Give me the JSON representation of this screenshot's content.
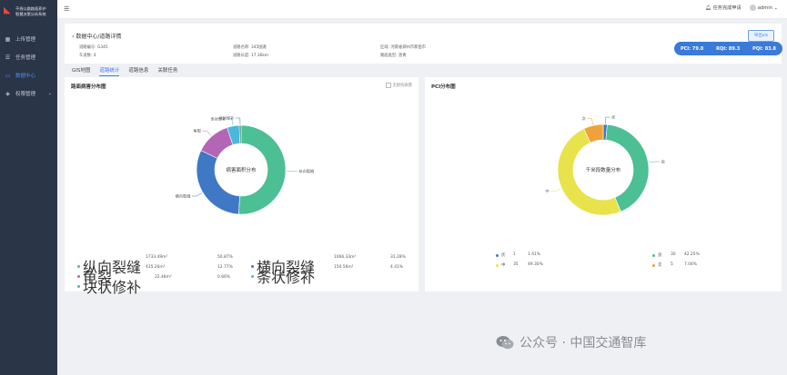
{
  "sidebar": {
    "logo_text_line1": "干线公路路面养护",
    "logo_text_line2": "智慧决策分析系统",
    "items": [
      {
        "label": "上传管理",
        "icon": "grid-icon",
        "active": false
      },
      {
        "label": "任务管理",
        "icon": "list-icon",
        "active": false
      },
      {
        "label": "数据中心",
        "icon": "monitor-icon",
        "active": true
      },
      {
        "label": "权限管理",
        "icon": "shield-icon",
        "active": false
      }
    ]
  },
  "topbar": {
    "notification": "任务完成申请",
    "user": "admin"
  },
  "header": {
    "breadcrumb": "数据中心/道路详情",
    "road_code_label": "道路编号:",
    "road_code": "G345",
    "lanes_label": "车道数:",
    "lanes": "4",
    "road_name_label": "道路名称:",
    "road_name": "345国道",
    "road_length_label": "道路长度:",
    "road_length": "17.36km",
    "region_label": "区域:",
    "region": "河南省郑州市新密市",
    "surface_label": "路面类型:",
    "surface": "沥青",
    "export_label": "导出xls",
    "metrics": [
      {
        "label": "PCI:",
        "value": "79.0"
      },
      {
        "label": "RQI:",
        "value": "89.3"
      },
      {
        "label": "PQI:",
        "value": "83.8"
      }
    ]
  },
  "tabs": [
    "GIS地图",
    "道路统计",
    "道路信息",
    "关联任务"
  ],
  "active_tab": 1,
  "left_panel": {
    "title": "路面病害分布图",
    "checkbox_label": "无损伤病害",
    "center_label": "病害面积分布",
    "colors": {
      "longitudinal": "#4dbf94",
      "transverse": "#3f78c4",
      "cracking": "#b466b6",
      "patching": "#4ab7dd"
    },
    "legend": [
      {
        "name": "纵向裂缝",
        "value": "1733.49m²",
        "percent": "50.87%",
        "color": "#4dbf94"
      },
      {
        "name": "横向裂缝",
        "value": "1066.33m²",
        "percent": "31.28%",
        "color": "#3f78c4"
      },
      {
        "name": "龟裂",
        "value": "435.26m²",
        "percent": "12.77%",
        "color": "#b466b6"
      },
      {
        "name": "条状修补",
        "value": "150.56m²",
        "percent": "4.41%",
        "color": "#4ab7dd"
      },
      {
        "name": "块状修补",
        "value": "22.48m²",
        "percent": "0.66%",
        "color": "#4dbf94"
      }
    ]
  },
  "right_panel": {
    "title": "PCI分布图",
    "center_label": "千米段数量分布",
    "legend": [
      {
        "name": "优",
        "count": "1",
        "percent": "1.41%",
        "color": "#3f78c4"
      },
      {
        "name": "良",
        "count": "30",
        "percent": "42.25%",
        "color": "#4dbf94"
      },
      {
        "name": "中",
        "count": "35",
        "percent": "49.30%",
        "color": "#e8e34a"
      },
      {
        "name": "次",
        "count": "5",
        "percent": "7.04%",
        "color": "#f0a23a"
      }
    ]
  },
  "watermark": "公众号 · 中国交通智库",
  "chart_data": [
    {
      "type": "pie",
      "title": "路面病害分布图",
      "center_label": "病害面积分布",
      "categories": [
        "纵向裂缝",
        "横向裂缝",
        "龟裂",
        "条状修补",
        "块状修补"
      ],
      "values": [
        1733.49,
        1066.33,
        435.26,
        150.56,
        22.48
      ],
      "percents": [
        50.87,
        31.28,
        12.77,
        4.41,
        0.66
      ],
      "unit": "m²",
      "colors": [
        "#4dbf94",
        "#3f78c4",
        "#b466b6",
        "#4ab7dd",
        "#2e8a6c"
      ]
    },
    {
      "type": "pie",
      "title": "PCI分布图",
      "center_label": "千米段数量分布",
      "categories": [
        "优",
        "良",
        "中",
        "次"
      ],
      "values": [
        1,
        30,
        35,
        5
      ],
      "percents": [
        1.41,
        42.25,
        49.3,
        7.04
      ],
      "colors": [
        "#3f78c4",
        "#4dbf94",
        "#e8e34a",
        "#f0a23a"
      ]
    }
  ]
}
